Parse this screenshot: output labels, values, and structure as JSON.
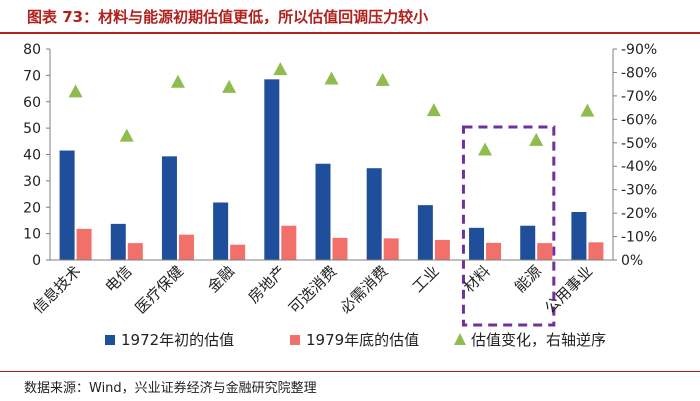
{
  "header": {
    "title": "图表 73：材料与能源初期估值更低，所以估值回调压力较小"
  },
  "footer": {
    "source": "数据来源：Wind，兴业证券经济与金融研究院整理"
  },
  "colors": {
    "series_1972": "#1f4e9a",
    "series_1979": "#f2706a",
    "series_change": "#8fbc4e",
    "highlight_box": "#7030a0",
    "title": "#b0211d"
  },
  "chart_data": {
    "type": "bar",
    "title": "",
    "categories": [
      "信息技术",
      "电信",
      "医疗保健",
      "金融",
      "房地产",
      "可选消费",
      "必需消费",
      "工业",
      "材料",
      "能源",
      "公用事业"
    ],
    "series": [
      {
        "name": "1972年初的估值",
        "type": "bar",
        "axis": "left",
        "values": [
          41.5,
          13.7,
          39.3,
          21.8,
          68.5,
          36.5,
          34.8,
          20.8,
          12.2,
          13.0,
          18.2
        ]
      },
      {
        "name": "1979年底的估值",
        "type": "bar",
        "axis": "left",
        "values": [
          11.8,
          6.4,
          9.6,
          5.8,
          13.0,
          8.4,
          8.2,
          7.6,
          6.5,
          6.4,
          6.7
        ]
      },
      {
        "name": "估值变化，右轴逆序",
        "type": "scatter",
        "axis": "right",
        "values": [
          -71.5,
          -52.6,
          -75.6,
          -73.4,
          -81.0,
          -77.0,
          -76.4,
          -63.5,
          -46.7,
          -50.8,
          -63.3
        ]
      }
    ],
    "left_axis": {
      "min": 0,
      "max": 80,
      "step": 10,
      "tick_labels": [
        "0",
        "10",
        "20",
        "30",
        "40",
        "50",
        "60",
        "70",
        "80"
      ]
    },
    "right_axis": {
      "min": 0,
      "max": -90,
      "step": -10,
      "reversed": true,
      "tick_labels": [
        "0%",
        "-10%",
        "-20%",
        "-30%",
        "-40%",
        "-50%",
        "-60%",
        "-70%",
        "-80%",
        "-90%"
      ]
    },
    "legend": {
      "position": "bottom",
      "labels": [
        "1972年初的估值",
        "1979年底的估值",
        "估值变化，右轴逆序"
      ]
    },
    "highlight": {
      "categories": [
        "材料",
        "能源"
      ],
      "style": "dashed-box"
    }
  }
}
